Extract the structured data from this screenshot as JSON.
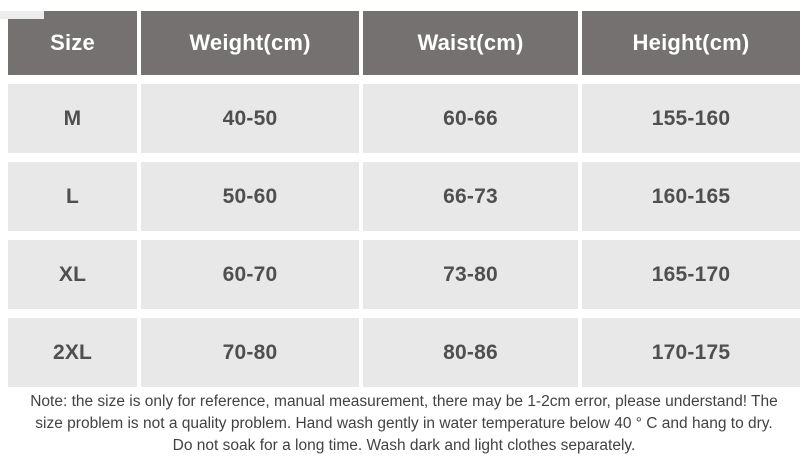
{
  "table": {
    "columns": {
      "size": "Size",
      "weight": "Weight(cm)",
      "waist": "Waist(cm)",
      "height": "Height(cm)"
    },
    "rows": [
      {
        "size": "M",
        "weight": "40-50",
        "waist": "60-66",
        "height": "155-160"
      },
      {
        "size": "L",
        "weight": "50-60",
        "waist": "66-73",
        "height": "160-165"
      },
      {
        "size": "XL",
        "weight": "60-70",
        "waist": "73-80",
        "height": "165-170"
      },
      {
        "size": "2XL",
        "weight": "70-80",
        "waist": "80-86",
        "height": "170-175"
      }
    ],
    "colors": {
      "header_bg": "#747170",
      "header_text": "#ffffff",
      "cell_bg": "#e9e8e8",
      "cell_text": "#4f4f4f"
    }
  },
  "note": {
    "lines": [
      "Note: the size is only for reference, manual measurement, there may be 1-2cm error, please understand! The",
      "size problem is not a quality problem. Hand wash gently in water temperature below 40 ° C and hang to dry.",
      "Do not soak for a long time. Wash dark and light clothes separately."
    ],
    "color": "#424242"
  },
  "chart_data": {
    "type": "table",
    "title": "",
    "columns": [
      "Size",
      "Weight(cm)",
      "Waist(cm)",
      "Height(cm)"
    ],
    "rows": [
      [
        "M",
        "40-50",
        "60-66",
        "155-160"
      ],
      [
        "L",
        "50-60",
        "66-73",
        "160-165"
      ],
      [
        "XL",
        "60-70",
        "73-80",
        "165-170"
      ],
      [
        "2XL",
        "70-80",
        "80-86",
        "170-175"
      ]
    ],
    "note": "Note: the size is only for reference, manual measurement, there may be 1-2cm error, please understand! The size problem is not a quality problem. Hand wash gently in water temperature below 40 ° C and hang to dry. Do not soak for a long time. Wash dark and light clothes separately."
  }
}
